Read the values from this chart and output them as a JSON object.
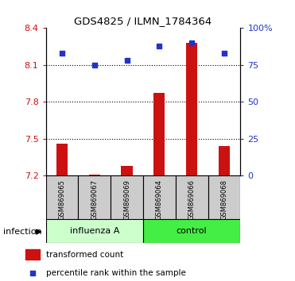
{
  "title": "GDS4825 / ILMN_1784364",
  "samples": [
    "GSM869065",
    "GSM869067",
    "GSM869069",
    "GSM869064",
    "GSM869066",
    "GSM869068"
  ],
  "bar_base": 7.2,
  "transformed_counts": [
    7.46,
    7.21,
    7.28,
    7.87,
    8.28,
    7.44
  ],
  "percentile_right": [
    83,
    75,
    78,
    88,
    90,
    83
  ],
  "ylim": [
    7.2,
    8.4
  ],
  "yticks_left": [
    7.2,
    7.5,
    7.8,
    8.1,
    8.4
  ],
  "ytick_left_labels": [
    "7.2",
    "7.5",
    "7.8",
    "8.1",
    "8.4"
  ],
  "yticks_right_vals": [
    0,
    25,
    50,
    75,
    100
  ],
  "ytick_right_labels": [
    "0",
    "25",
    "50",
    "75",
    "100%"
  ],
  "dotted_lines": [
    7.5,
    7.8,
    8.1
  ],
  "bar_color": "#cc1111",
  "dot_color": "#2233cc",
  "left_tick_color": "#cc1111",
  "right_tick_color": "#2233cc",
  "legend_label_red": "transformed count",
  "legend_label_blue": "percentile rank within the sample",
  "infection_label": "infection",
  "group_info": [
    {
      "label": "influenza A",
      "start": 0,
      "end": 3,
      "color": "#ccffcc"
    },
    {
      "label": "control",
      "start": 3,
      "end": 6,
      "color": "#44ee44"
    }
  ],
  "sample_box_color": "#cccccc",
  "bar_width": 0.35
}
